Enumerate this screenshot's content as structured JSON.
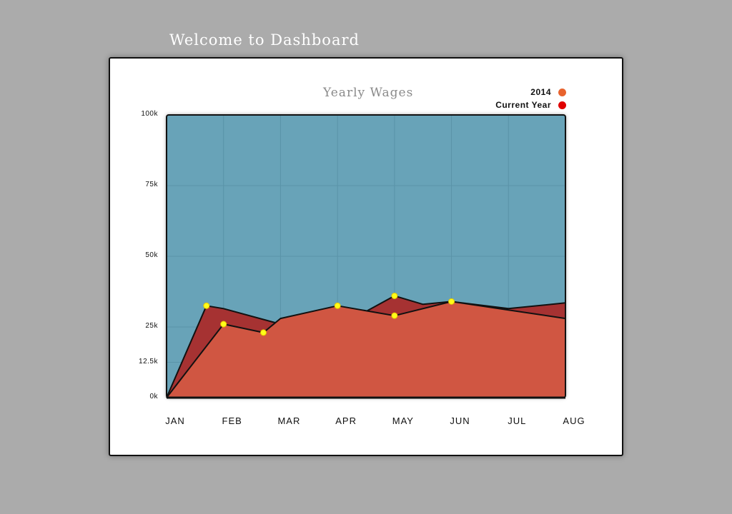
{
  "page": {
    "heading": "Welcome to Dashboard"
  },
  "chart_data": {
    "type": "area",
    "title": "Yearly Wages",
    "x": [
      "JAN",
      "FEB",
      "MAR",
      "APR",
      "MAY",
      "JUN",
      "JUL",
      "AUG"
    ],
    "ylim": [
      0,
      100000
    ],
    "y_ticks": [
      "0k",
      "12.5k",
      "25k",
      "50k",
      "75k",
      "100k"
    ],
    "y_tick_values": [
      0,
      12500,
      25000,
      50000,
      75000,
      100000
    ],
    "grid": true,
    "legend_position": "top-right",
    "plot_background": "#68a3b8",
    "series": [
      {
        "name": "Current Year",
        "color": "#a63232",
        "points": [
          [
            0,
            0
          ],
          [
            0.7,
            32500
          ],
          [
            1.0,
            31500
          ],
          [
            2.0,
            26000
          ],
          [
            3.0,
            32000
          ],
          [
            3.5,
            30500
          ],
          [
            4.0,
            36000
          ],
          [
            4.5,
            33000
          ],
          [
            5.0,
            34000
          ],
          [
            6.0,
            31500
          ],
          [
            7.0,
            33500
          ]
        ],
        "markers": [
          [
            0.7,
            32500
          ],
          [
            4.0,
            36000
          ]
        ]
      },
      {
        "name": "2014",
        "color": "#d05642",
        "points": [
          [
            0,
            0
          ],
          [
            1.0,
            26000
          ],
          [
            1.7,
            23000
          ],
          [
            2.0,
            28000
          ],
          [
            3.0,
            32500
          ],
          [
            4.0,
            29000
          ],
          [
            5.0,
            34000
          ],
          [
            6.0,
            31000
          ],
          [
            7.0,
            28000
          ]
        ],
        "markers": [
          [
            1.0,
            26000
          ],
          [
            1.7,
            23000
          ],
          [
            3.0,
            32500
          ],
          [
            4.0,
            29000
          ],
          [
            5.0,
            34000
          ]
        ]
      }
    ],
    "legend": [
      {
        "name": "2014",
        "color": "#e8632e"
      },
      {
        "name": "Current Year",
        "color": "#e00000"
      }
    ]
  }
}
